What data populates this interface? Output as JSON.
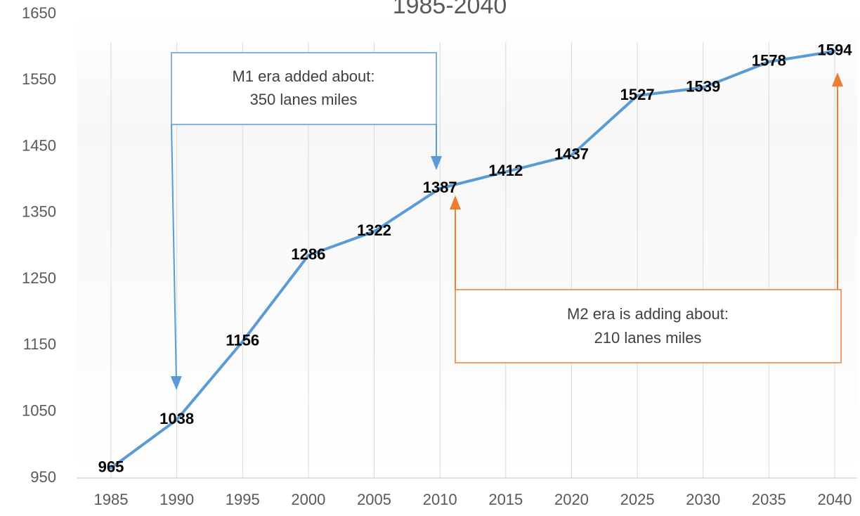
{
  "chart_data": {
    "type": "line",
    "title": "1985-2040",
    "x": [
      1985,
      1990,
      1995,
      2000,
      2005,
      2010,
      2015,
      2020,
      2025,
      2030,
      2035,
      2040
    ],
    "series": [
      {
        "color": "#5b9bd5",
        "values": [
          965,
          1038,
          1156,
          1286,
          1322,
          1387,
          1412,
          1437,
          1527,
          1539,
          1578,
          1594
        ]
      }
    ],
    "xlim": [
      1985,
      2040
    ],
    "xticks": [
      1985,
      1990,
      1995,
      2000,
      2005,
      2010,
      2015,
      2020,
      2025,
      2030,
      2035,
      2040
    ],
    "ylim": [
      950,
      1650
    ],
    "yticks": [
      950,
      1050,
      1150,
      1250,
      1350,
      1450,
      1550,
      1650
    ],
    "grid": true,
    "annotations": [
      {
        "lines": [
          "M1 era added about:",
          "350 lanes miles"
        ],
        "color": "#5b9bd5"
      },
      {
        "lines": [
          "M2 era is adding about:",
          "210 lanes miles"
        ],
        "color": "#ed7d31"
      }
    ]
  }
}
